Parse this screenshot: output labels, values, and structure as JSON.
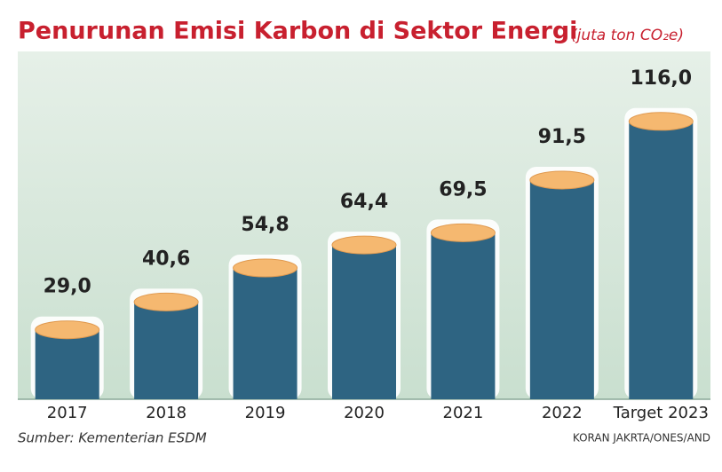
{
  "chart_data": {
    "type": "bar",
    "title": "Penurunan Emisi Karbon di Sektor Energi",
    "subtitle": "(juta ton CO₂e)",
    "categories": [
      "2017",
      "2018",
      "2019",
      "2020",
      "2021",
      "2022",
      "Target 2023"
    ],
    "values": [
      29.0,
      40.6,
      54.8,
      64.4,
      69.5,
      91.5,
      116.0
    ],
    "value_labels": [
      "29,0",
      "40,6",
      "54,8",
      "64,4",
      "69,5",
      "91,5",
      "116,0"
    ],
    "color": "#2e6482",
    "source": "Sumber: Kementerian ESDM",
    "credit": "KORAN JAKRTA/ONES/AND"
  }
}
